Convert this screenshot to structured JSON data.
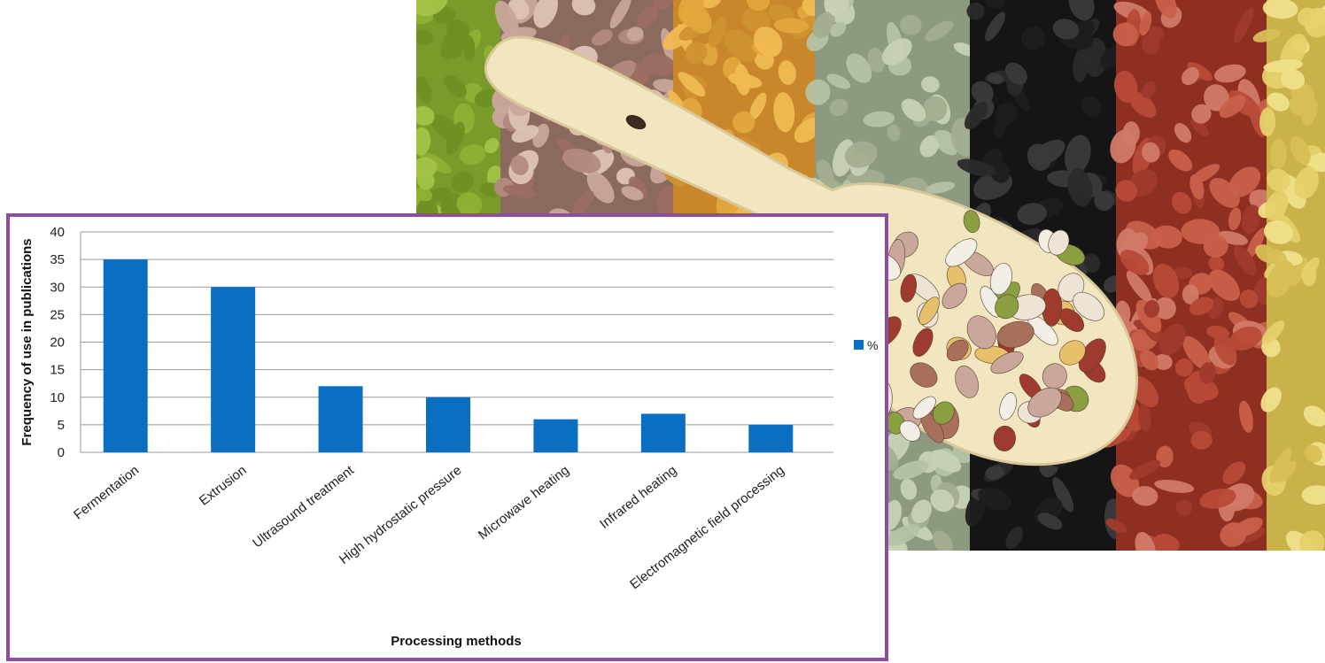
{
  "photo": {
    "icon": "legume-beans-scoop-photo"
  },
  "chart_data": {
    "type": "bar",
    "categories": [
      "Fermentation",
      "Extrusion",
      "Ultrasound treatment",
      "High hydrostatic pressure",
      "Microwave heating",
      "Infrared heating",
      "Electromagnetic field processing"
    ],
    "series": [
      {
        "name": "%",
        "values": [
          35,
          30,
          12,
          10,
          6,
          7,
          5
        ],
        "color": "#0a6fc2"
      }
    ],
    "xlabel": "Processing methods",
    "ylabel": "Frequency of use in publications",
    "ylim": [
      0,
      40
    ],
    "yticks": [
      0,
      5,
      10,
      15,
      20,
      25,
      30,
      35,
      40
    ],
    "grid": true,
    "legend": "right",
    "frame_color": "#8e4ea0"
  }
}
